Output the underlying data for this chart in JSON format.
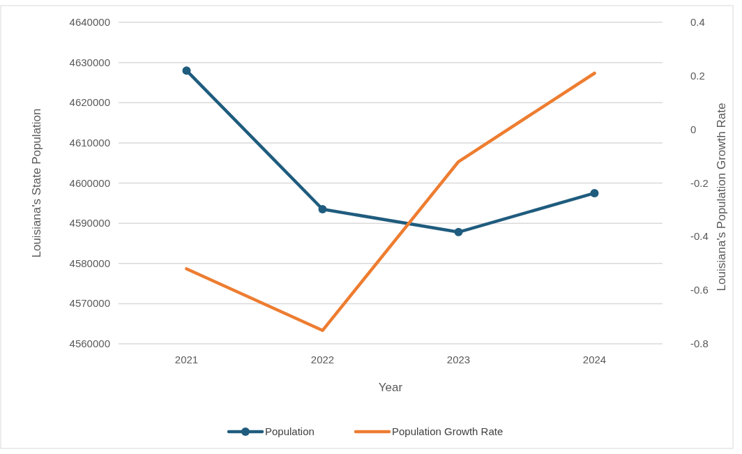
{
  "chart_data": {
    "type": "line",
    "categories": [
      "2021",
      "2022",
      "2023",
      "2024"
    ],
    "xlabel": "Year",
    "ylabel": "Louisiana's State  Population",
    "y2label": "Louisiana's Population Growth Rate",
    "series": [
      {
        "name": "Population",
        "color": "#1f5c7e",
        "values": [
          4628000,
          4593500,
          4587800,
          4597500
        ],
        "marker": "circle"
      },
      {
        "name": "Population Growth Rate",
        "color": "#ed7d31",
        "values": [
          -0.52,
          -0.75,
          -0.12,
          0.21
        ],
        "axis": "y2",
        "marker": "none"
      }
    ],
    "ylim": [
      4560000,
      4640000
    ],
    "yticks": [
      4560000,
      4570000,
      4580000,
      4590000,
      4600000,
      4610000,
      4620000,
      4630000,
      4640000
    ],
    "y2lim": [
      -0.8,
      0.4
    ],
    "y2ticks": [
      -0.8,
      -0.6,
      -0.4,
      -0.2,
      0,
      0.2,
      0.4
    ],
    "grid": "y",
    "legend": "bottom"
  }
}
